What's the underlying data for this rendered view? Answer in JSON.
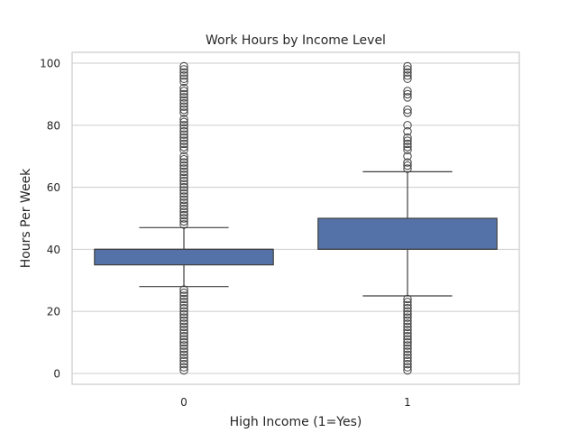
{
  "chart_data": {
    "type": "box",
    "title": "Work Hours by Income Level",
    "xlabel": "High Income (1=Yes)",
    "ylabel": "Hours Per Week",
    "categories": [
      "0",
      "1"
    ],
    "ylim": [
      -3.5,
      103.5
    ],
    "yticks": [
      0,
      20,
      40,
      60,
      80,
      100
    ],
    "grid": true,
    "box_color": "#5572a8",
    "line_color": "#3f3f3f",
    "boxes": [
      {
        "category": "0",
        "whisker_low": 28,
        "q1": 35,
        "median": 40,
        "q3": 40,
        "whisker_high": 47,
        "outliers": [
          1,
          2,
          3,
          4,
          5,
          6,
          7,
          8,
          9,
          10,
          11,
          12,
          13,
          14,
          15,
          16,
          17,
          18,
          19,
          20,
          21,
          22,
          23,
          24,
          25,
          26,
          27,
          48,
          49,
          50,
          51,
          52,
          53,
          54,
          55,
          56,
          57,
          58,
          59,
          60,
          61,
          62,
          63,
          64,
          65,
          66,
          67,
          68,
          69,
          70,
          72,
          73,
          74,
          75,
          76,
          77,
          78,
          79,
          80,
          81,
          82,
          84,
          85,
          86,
          87,
          88,
          89,
          90,
          91,
          92,
          94,
          95,
          96,
          97,
          98,
          99
        ]
      },
      {
        "category": "1",
        "whisker_low": 25,
        "q1": 40,
        "median": 40,
        "q3": 50,
        "whisker_high": 65,
        "outliers": [
          1,
          2,
          3,
          4,
          5,
          6,
          7,
          8,
          9,
          10,
          11,
          12,
          13,
          14,
          15,
          16,
          17,
          18,
          19,
          20,
          21,
          22,
          23,
          24,
          66,
          67,
          68,
          70,
          72,
          73,
          74,
          75,
          76,
          78,
          80,
          84,
          85,
          89,
          90,
          91,
          95,
          96,
          97,
          98,
          99
        ]
      }
    ]
  }
}
